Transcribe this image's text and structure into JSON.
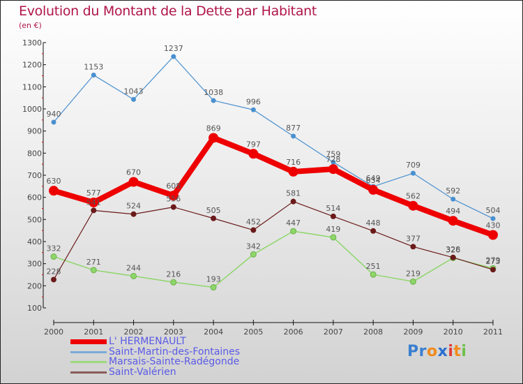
{
  "header": {
    "title": "Evolution du Montant de la Dette par Habitant",
    "subtitle": "(en €)"
  },
  "logo": {
    "parts": [
      {
        "text": "Pr",
        "color": "#3a7fd0"
      },
      {
        "text": "o",
        "color": "#f08c1e"
      },
      {
        "text": "x",
        "color": "#2a6fd0"
      },
      {
        "text": "i",
        "color": "#e23a3a"
      },
      {
        "text": "t",
        "color": "#f08c1e"
      },
      {
        "text": "i",
        "color": "#6cc04a"
      }
    ]
  },
  "chart_data": {
    "type": "line",
    "title": "Evolution du Montant de la Dette par Habitant",
    "subtitle": "(en €)",
    "xlabel": "",
    "ylabel": "",
    "x": [
      "2000",
      "2001",
      "2002",
      "2003",
      "2004",
      "2005",
      "2006",
      "2007",
      "2008",
      "2009",
      "2010",
      "2011"
    ],
    "ylim": [
      100,
      1300
    ],
    "yticks": [
      100,
      200,
      300,
      400,
      500,
      600,
      700,
      800,
      900,
      1000,
      1100,
      1200,
      1300
    ],
    "grid": false,
    "legend_position": "bottom-left",
    "series": [
      {
        "name": "L' HERMENAULT",
        "color": "#ee0000",
        "values": [
          630,
          577,
          670,
          608,
          869,
          797,
          716,
          728,
          634,
          562,
          494,
          430
        ]
      },
      {
        "name": "Saint-Martin-des-Fontaines",
        "color": "#4a90d0",
        "values": [
          940,
          1153,
          1043,
          1237,
          1038,
          996,
          877,
          759,
          649,
          709,
          592,
          504
        ]
      },
      {
        "name": "Marsais-Sainte-Radégonde",
        "color": "#8ed66a",
        "values": [
          332,
          271,
          244,
          216,
          193,
          342,
          447,
          419,
          251,
          219,
          326,
          279
        ]
      },
      {
        "name": "Saint-Valérien",
        "color": "#6b1a1a",
        "values": [
          228,
          541,
          524,
          556,
          505,
          452,
          581,
          514,
          448,
          377,
          328,
          273
        ]
      }
    ]
  }
}
